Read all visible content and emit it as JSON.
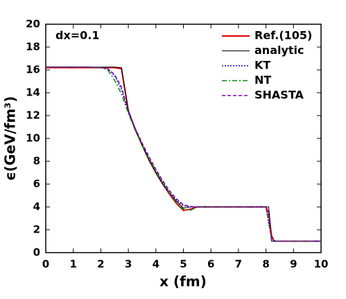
{
  "chart_data": {
    "type": "line",
    "xlabel": "x (fm)",
    "ylabel": "ϵ(GeV/fm³)",
    "annotation": "dx=0.1",
    "x": [
      0,
      0.5,
      1,
      1.5,
      2,
      2.25,
      2.5,
      2.75,
      3,
      3.25,
      3.5,
      3.75,
      4,
      4.25,
      4.5,
      4.75,
      5,
      5.25,
      5.5,
      6,
      6.5,
      7,
      7.5,
      8,
      8.1,
      8.2,
      8.3,
      8.5,
      9,
      9.5,
      10
    ],
    "series": [
      {
        "name": "Ref.(105)",
        "color": "#dd0000",
        "dash": "none",
        "width": 2,
        "values": [
          16.2,
          16.2,
          16.2,
          16.2,
          16.2,
          16.2,
          16.2,
          16.1,
          12.4,
          10.8,
          9.4,
          8.1,
          7.0,
          6.0,
          5.1,
          4.3,
          3.7,
          3.8,
          4.0,
          4.0,
          4.0,
          4.0,
          4.0,
          4.0,
          3.5,
          1.5,
          1.0,
          1.0,
          1.0,
          1.0,
          1.0
        ]
      },
      {
        "name": "analytic",
        "color": "#000000",
        "dash": "none",
        "width": 1,
        "values": [
          16.25,
          16.25,
          16.25,
          16.25,
          16.25,
          16.25,
          16.25,
          16.2,
          12.5,
          10.8,
          9.4,
          8.1,
          7.0,
          6.0,
          5.2,
          4.5,
          3.9,
          4.0,
          4.0,
          4.0,
          4.0,
          4.0,
          4.0,
          4.0,
          4.0,
          1.0,
          1.0,
          1.0,
          1.0,
          1.0,
          1.0
        ]
      },
      {
        "name": "KT",
        "color": "#0000dd",
        "dash": "2,2",
        "width": 1.5,
        "values": [
          16.25,
          16.25,
          16.25,
          16.25,
          16.2,
          16.1,
          15.5,
          14.3,
          12.3,
          10.8,
          9.5,
          8.3,
          7.2,
          6.2,
          5.3,
          4.6,
          4.1,
          4.0,
          4.0,
          4.0,
          4.0,
          4.0,
          4.0,
          4.0,
          2.5,
          1.3,
          1.05,
          1.0,
          1.0,
          1.0,
          1.0
        ]
      },
      {
        "name": "NT",
        "color": "#008800",
        "dash": "7,3,2,3",
        "width": 1.5,
        "values": [
          16.25,
          16.25,
          16.25,
          16.25,
          16.2,
          16.0,
          15.1,
          13.9,
          12.2,
          10.7,
          9.4,
          8.2,
          7.1,
          6.1,
          5.2,
          4.4,
          3.8,
          3.7,
          4.0,
          4.0,
          4.0,
          4.0,
          4.0,
          4.0,
          2.8,
          1.2,
          1.0,
          1.0,
          1.0,
          1.0,
          1.0
        ]
      },
      {
        "name": "SHASTA",
        "color": "#8800aa",
        "dash": "5,3",
        "width": 1.5,
        "values": [
          16.25,
          16.25,
          16.25,
          16.25,
          16.2,
          16.1,
          15.6,
          14.5,
          12.4,
          10.9,
          9.6,
          8.4,
          7.3,
          6.3,
          5.4,
          4.7,
          4.2,
          4.05,
          4.0,
          4.0,
          4.0,
          4.0,
          4.0,
          4.0,
          3.0,
          1.1,
          1.0,
          1.0,
          1.0,
          1.0,
          1.0
        ]
      }
    ],
    "xlim": [
      0,
      10
    ],
    "xticks": [
      0,
      1,
      2,
      3,
      4,
      5,
      6,
      7,
      8,
      9,
      10
    ],
    "ylim": [
      0,
      20
    ],
    "yticks": [
      0,
      2,
      4,
      6,
      8,
      10,
      12,
      14,
      16,
      18,
      20
    ],
    "legend": "upper right"
  }
}
